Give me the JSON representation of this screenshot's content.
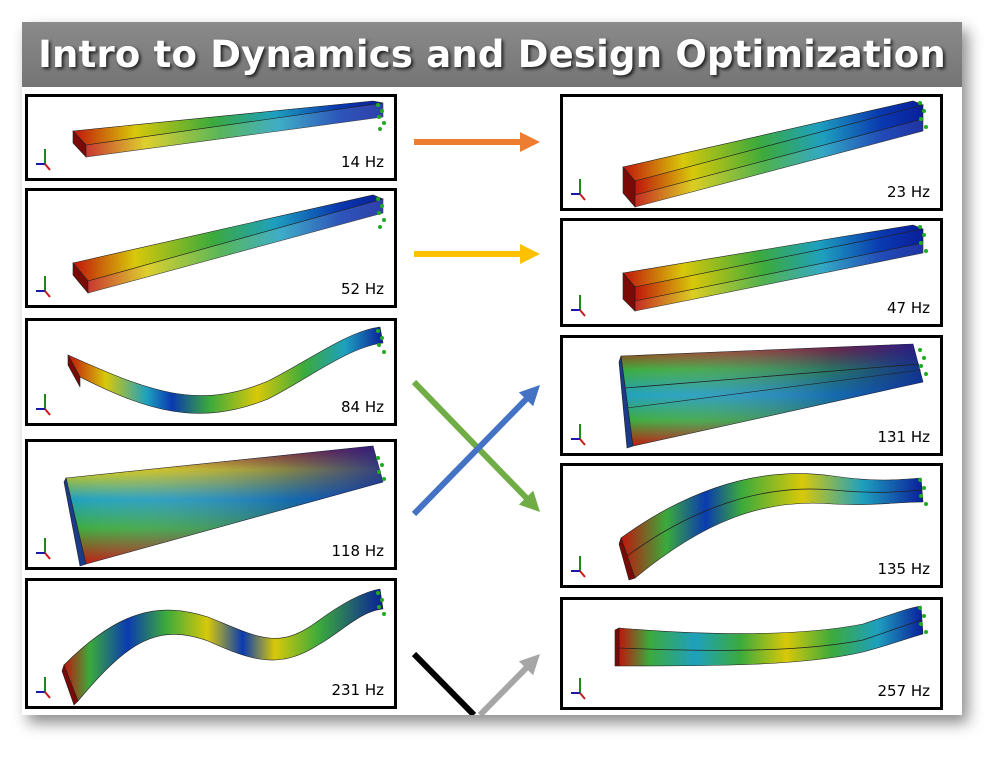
{
  "title": "Intro to Dynamics and Design Optimization",
  "left_modes": [
    {
      "frequency": "14 Hz"
    },
    {
      "frequency": "52 Hz"
    },
    {
      "frequency": "84 Hz"
    },
    {
      "frequency": "118 Hz"
    },
    {
      "frequency": "231 Hz"
    }
  ],
  "right_modes": [
    {
      "frequency": "23 Hz"
    },
    {
      "frequency": "47 Hz"
    },
    {
      "frequency": "131 Hz"
    },
    {
      "frequency": "135 Hz"
    },
    {
      "frequency": "257 Hz"
    }
  ],
  "arrows": [
    {
      "from": "14 Hz",
      "to": "23 Hz",
      "color": "#ed7d31"
    },
    {
      "from": "52 Hz",
      "to": "47 Hz",
      "color": "#ffc000"
    },
    {
      "from": "84 Hz",
      "to": "135 Hz",
      "color": "#70ad47"
    },
    {
      "from": "118 Hz",
      "to": "131 Hz",
      "color": "#4472c4"
    },
    {
      "from": "231 Hz",
      "to": "",
      "color": "#000000"
    },
    {
      "from": "",
      "to": "257 Hz",
      "color": "#a6a6a6"
    }
  ],
  "colors": {
    "title_bar": "#7f7f7f",
    "contour_red": "#c0140c",
    "contour_yellow": "#d8c80a",
    "contour_green": "#3caa3c",
    "contour_cyan": "#1ea0be",
    "contour_blue": "#0a1e9b"
  },
  "icons": [
    "coordinate-triad-icon",
    "fixed-support-icon"
  ]
}
